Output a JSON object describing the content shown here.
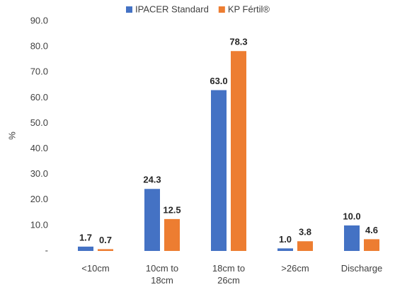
{
  "chart_data": {
    "type": "bar",
    "ylabel": "%",
    "categories": [
      "<10cm",
      "10cm to 18cm",
      "18cm to 26cm",
      ">26cm",
      "Discharge"
    ],
    "series": [
      {
        "name": "IPACER Standard",
        "color": "#4472c4",
        "values": [
          1.7,
          24.3,
          63.0,
          1.0,
          10.0
        ],
        "value_labels": [
          "1.7",
          "24.3",
          "63.0",
          "1.0",
          "10.0"
        ]
      },
      {
        "name": "KP Fértil®",
        "color": "#ed7d31",
        "values": [
          0.7,
          12.5,
          78.3,
          3.8,
          4.6
        ],
        "value_labels": [
          "0.7",
          "12.5",
          "78.3",
          "3.8",
          "4.6"
        ]
      }
    ],
    "ylim": [
      0,
      90
    ],
    "yticks": [
      {
        "value": 0,
        "label": "-"
      },
      {
        "value": 10,
        "label": "10.0"
      },
      {
        "value": 20,
        "label": "20.0"
      },
      {
        "value": 30,
        "label": "30.0"
      },
      {
        "value": 40,
        "label": "40.0"
      },
      {
        "value": 50,
        "label": "50.0"
      },
      {
        "value": 60,
        "label": "60.0"
      },
      {
        "value": 70,
        "label": "70.0"
      },
      {
        "value": 80,
        "label": "80.0"
      },
      {
        "value": 90,
        "label": "90.0"
      }
    ],
    "grid": false,
    "legend": "top"
  }
}
